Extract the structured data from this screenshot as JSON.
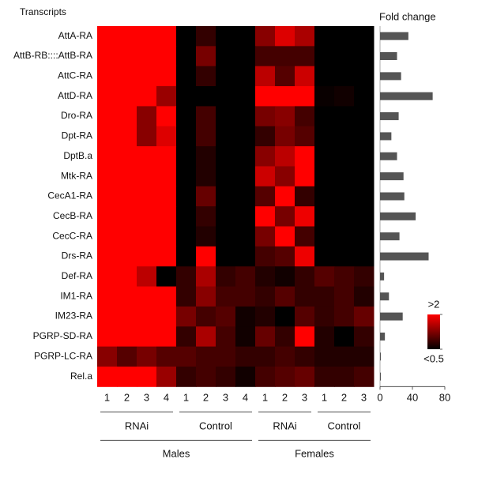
{
  "chart_data": [
    {
      "type": "heatmap",
      "row_axis_title": "Transcripts",
      "rows": [
        "AttA-RA",
        "AttB-RB::::AttB-RA",
        "AttC-RA",
        "AttD-RA",
        "Dro-RA",
        "Dpt-RA",
        "DptB.a",
        "Mtk-RA",
        "CecA1-RA",
        "CecB-RA",
        "CecC-RA",
        "Drs-RA",
        "Def-RA",
        "IM1-RA",
        "IM23-RA",
        "PGRP-SD-RA",
        "PGRP-LC-RA",
        "Rel.a"
      ],
      "groups": [
        {
          "name": "Males",
          "subgroups": [
            {
              "name": "RNAi",
              "columns": [
                "1",
                "2",
                "3",
                "4"
              ]
            },
            {
              "name": "Control",
              "columns": [
                "1",
                "2",
                "3",
                "4"
              ]
            }
          ]
        },
        {
          "name": "Females",
          "subgroups": [
            {
              "name": "RNAi",
              "columns": [
                "1",
                "2",
                "3"
              ]
            },
            {
              "name": "Control",
              "columns": [
                "1",
                "2",
                "3"
              ]
            }
          ]
        }
      ],
      "values": [
        [
          2,
          2,
          2,
          2,
          0.5,
          0.8,
          0.5,
          0.5,
          1.3,
          1.8,
          1.5,
          0.5,
          0.5,
          0.5
        ],
        [
          2,
          2,
          2,
          2,
          0.5,
          1.2,
          0.5,
          0.5,
          0.9,
          0.9,
          0.9,
          0.5,
          0.5,
          0.5
        ],
        [
          2,
          2,
          2,
          2,
          0.5,
          0.8,
          0.5,
          0.5,
          1.6,
          1.0,
          1.7,
          0.5,
          0.5,
          0.5
        ],
        [
          2,
          2,
          2,
          1.4,
          0.5,
          0.5,
          0.5,
          0.5,
          2,
          2,
          2,
          0.55,
          0.6,
          0.5
        ],
        [
          2,
          2,
          1.3,
          2,
          0.5,
          0.9,
          0.5,
          0.5,
          1.2,
          1.3,
          0.9,
          0.5,
          0.5,
          0.5
        ],
        [
          2,
          2,
          1.3,
          1.8,
          0.5,
          0.9,
          0.5,
          0.5,
          0.8,
          1.2,
          1.0,
          0.5,
          0.5,
          0.5
        ],
        [
          2,
          2,
          2,
          2,
          0.5,
          0.7,
          0.5,
          0.5,
          1.3,
          1.6,
          2,
          0.5,
          0.5,
          0.5
        ],
        [
          2,
          2,
          2,
          2,
          0.5,
          0.7,
          0.5,
          0.5,
          1.7,
          1.3,
          2,
          0.5,
          0.5,
          0.5
        ],
        [
          2,
          2,
          2,
          2,
          0.5,
          1.1,
          0.5,
          0.5,
          1.0,
          2,
          0.8,
          0.5,
          0.5,
          0.5
        ],
        [
          2,
          2,
          2,
          2,
          0.5,
          0.8,
          0.5,
          0.5,
          2,
          1.2,
          1.9,
          0.5,
          0.5,
          0.5
        ],
        [
          2,
          2,
          2,
          2,
          0.5,
          0.7,
          0.5,
          0.5,
          1.2,
          2,
          0.9,
          0.5,
          0.5,
          0.5
        ],
        [
          2,
          2,
          2,
          2,
          0.5,
          2,
          0.5,
          0.5,
          0.9,
          1.0,
          1.9,
          0.5,
          0.5,
          0.5
        ],
        [
          2,
          2,
          1.6,
          0.5,
          0.8,
          1.5,
          0.8,
          0.9,
          0.7,
          0.6,
          0.8,
          1.0,
          0.9,
          0.8
        ],
        [
          2,
          2,
          2,
          2,
          0.8,
          1.3,
          0.9,
          0.9,
          0.8,
          1.0,
          0.8,
          0.8,
          0.9,
          0.7
        ],
        [
          2,
          2,
          2,
          2,
          1.2,
          0.9,
          1.0,
          0.6,
          0.7,
          0.5,
          1.0,
          0.8,
          0.9,
          1.1
        ],
        [
          2,
          2,
          2,
          2,
          0.8,
          1.5,
          0.9,
          0.6,
          1.1,
          0.8,
          2,
          0.7,
          0.5,
          0.8
        ],
        [
          1.3,
          1.0,
          1.2,
          1.0,
          1.0,
          0.9,
          0.9,
          0.8,
          0.8,
          0.9,
          0.8,
          0.7,
          0.7,
          0.7
        ],
        [
          2,
          2,
          2,
          1.4,
          0.8,
          0.9,
          0.8,
          0.6,
          0.9,
          1.0,
          1.1,
          0.8,
          0.8,
          0.9
        ]
      ],
      "zlim": [
        0.5,
        2
      ],
      "zticks": [
        {
          "value": 2,
          "label": ">2"
        },
        {
          "value": 0.5,
          "label": "<0.5"
        }
      ],
      "colors": [
        "#000000",
        "#ff0000"
      ]
    },
    {
      "type": "bar",
      "title": "Fold change",
      "orientation": "horizontal",
      "color": "#555555",
      "values": [
        35,
        21,
        26,
        65,
        23,
        14,
        21,
        29,
        30,
        44,
        24,
        60,
        5,
        11,
        28,
        6,
        1,
        1
      ],
      "xlim": [
        0,
        80
      ],
      "xticks": [
        0,
        40,
        80
      ]
    }
  ]
}
